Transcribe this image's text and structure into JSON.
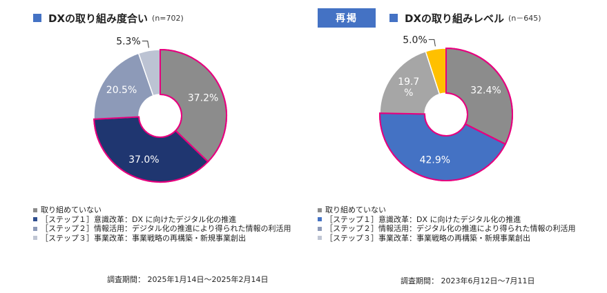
{
  "left": {
    "title": "DXの取り組み度合い",
    "n_label": "(n=702)",
    "period": "調査期間： 2025年1月14日～2025年2月14日"
  },
  "right": {
    "badge": "再掲",
    "title": "DXの取り組みレベル",
    "n_label": "(n－645)",
    "period": "調査期間： 2023年6月12日～7月11日"
  },
  "legend": [
    "取り組めていない",
    "［ステップ１］意識改革：DX に向けたデジタル化の推進",
    "［ステップ２］情報活用：デジタル化の推進により得られた情報の利活用",
    "［ステップ３］事業改革：事業戦略の再構築・新規事業創出"
  ],
  "colors": {
    "title_square": "#4472c4",
    "highlight_border": "#e6007e"
  },
  "chart_data": [
    {
      "type": "pie",
      "categories": [
        "取り組めていない",
        "［ステップ１］意識改革",
        "［ステップ２］情報活用",
        "［ステップ３］事業改革"
      ],
      "values": [
        37.2,
        37.0,
        20.5,
        5.3
      ],
      "labels": [
        "37.2%",
        "37.0%",
        "20.5%",
        "5.3%"
      ],
      "colors": [
        "#8c8c8c",
        "#1f3670",
        "#8d9ab8",
        "#bcc3d3"
      ],
      "legend_colors": [
        "#8c8c8c",
        "#2f4e8e",
        "#8d9ab8",
        "#c0c6d4"
      ],
      "highlighted": [
        "取り組めていない",
        "［ステップ１］意識改革"
      ],
      "donut": true
    },
    {
      "type": "pie",
      "categories": [
        "取り組めていない",
        "［ステップ１］意識改革",
        "［ステップ２］情報活用",
        "［ステップ３］事業改革"
      ],
      "values": [
        32.4,
        42.9,
        19.7,
        5.0
      ],
      "labels": [
        "32.4%",
        "42.9%",
        "19.7\n%",
        "5.0%"
      ],
      "colors": [
        "#8c8c8c",
        "#4472c4",
        "#a6a6a6",
        "#ffc000"
      ],
      "legend_colors": [
        "#8c8c8c",
        "#4472c4",
        "#8d9ab8",
        "#c0c6d4"
      ],
      "highlighted": [
        "取り組めていない",
        "［ステップ１］意識改革"
      ],
      "donut": true
    }
  ]
}
